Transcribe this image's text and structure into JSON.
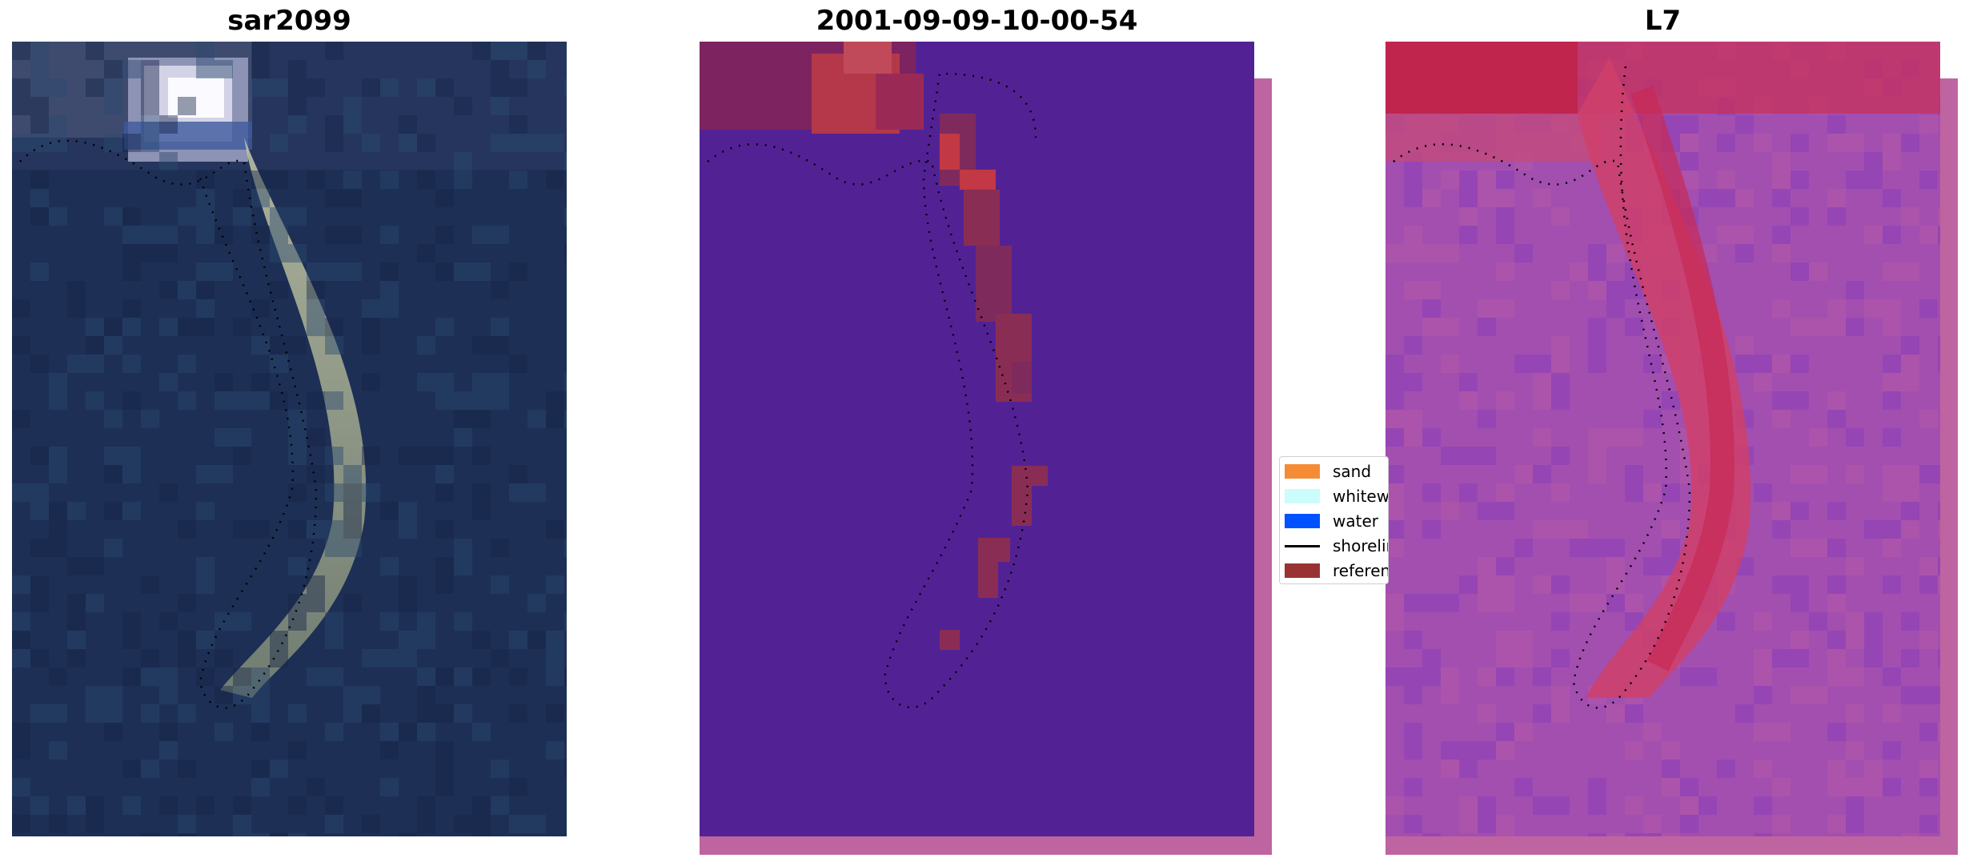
{
  "panels": {
    "left": {
      "title": "sar2099"
    },
    "middle": {
      "title": "2001-09-09-10-00-54"
    },
    "right": {
      "title": "L7"
    }
  },
  "legend": {
    "items": [
      {
        "label": "sand",
        "color": "#f58c35"
      },
      {
        "label": "whitewater",
        "color": "#ccfdfd"
      },
      {
        "label": "water",
        "color": "#0051ff"
      },
      {
        "label": "shoreline",
        "color": "#000000"
      },
      {
        "label": "reference",
        "color": "#993333"
      }
    ]
  },
  "colors": {
    "background_water_sat": "#1e2f55",
    "classification_water": "#522295",
    "index_background": "#a24fb0",
    "index_highlight": "#c0254e",
    "shadow_magenta": "#be64a0"
  }
}
